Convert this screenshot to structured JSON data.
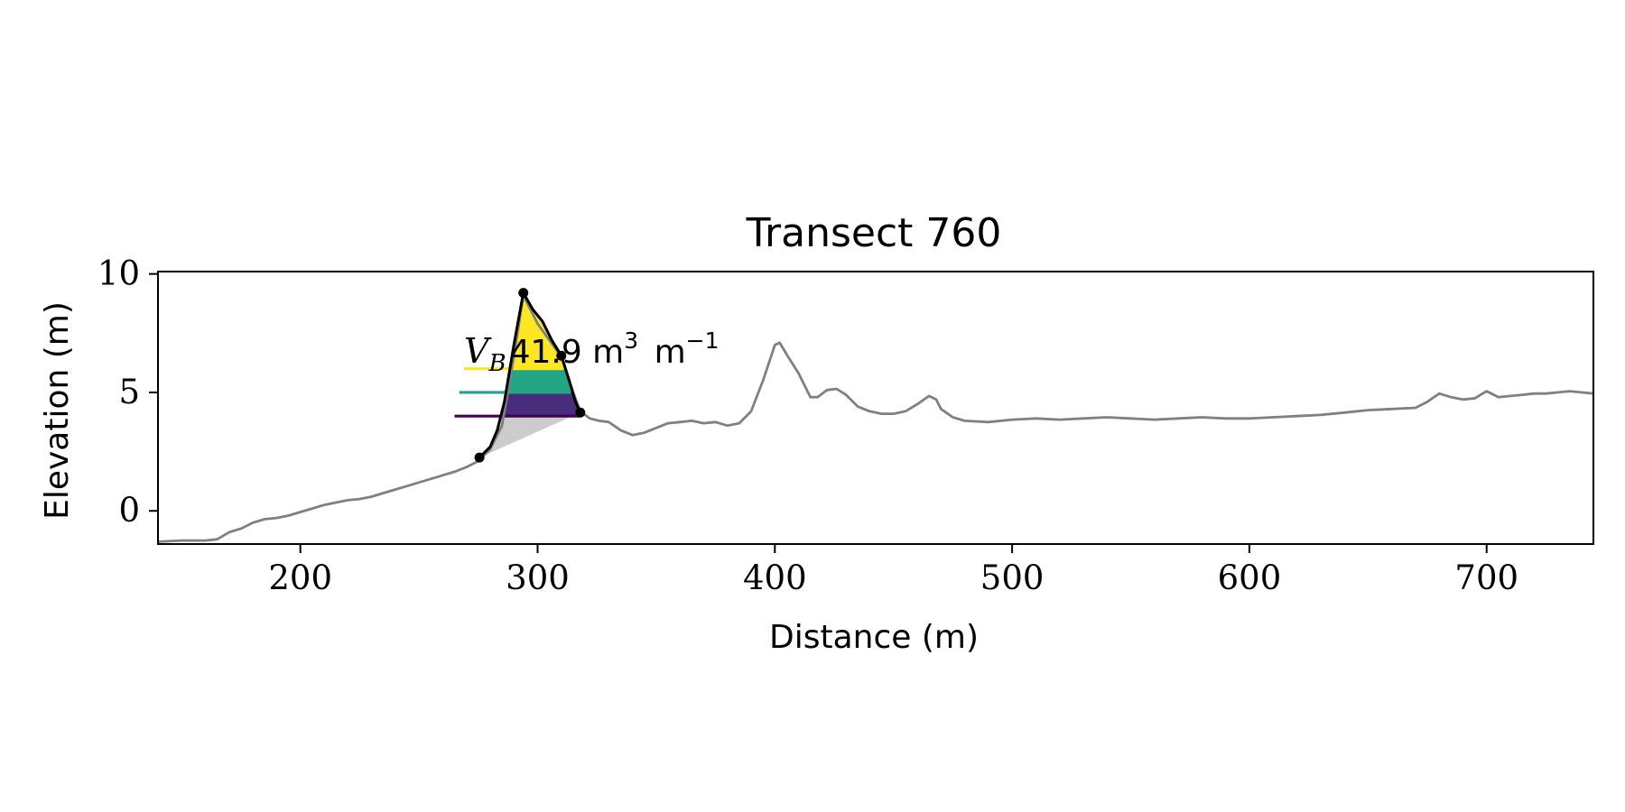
{
  "chart_data": {
    "type": "line",
    "title": "Transect 760",
    "xlabel": "Distance (m)",
    "ylabel": "Elevation (m)",
    "xlim": [
      140,
      745
    ],
    "ylim": [
      -1.4,
      10.1
    ],
    "xticks": [
      200,
      300,
      400,
      500,
      600,
      700
    ],
    "yticks": [
      0,
      5,
      10
    ],
    "grid": false,
    "legend": "none",
    "profile_color": "#808080",
    "dune_outline_color": "#000000",
    "fill_colors": {
      "yellow": "#fde725",
      "teal": "#21a685",
      "purple": "#472d7b",
      "dark_purple": "#440154",
      "gray": "#cccccc"
    },
    "profile": {
      "x": [
        140,
        150,
        160,
        165,
        170,
        175,
        180,
        185,
        190,
        195,
        200,
        205,
        210,
        215,
        220,
        225,
        230,
        235,
        240,
        245,
        250,
        255,
        260,
        265,
        270,
        275,
        280,
        285,
        290,
        294,
        300,
        305,
        310,
        315,
        318,
        322,
        326,
        330,
        335,
        340,
        345,
        350,
        355,
        360,
        365,
        370,
        375,
        380,
        385,
        390,
        395,
        400,
        402,
        405,
        410,
        415,
        418,
        422,
        426,
        430,
        435,
        440,
        445,
        450,
        455,
        460,
        465,
        468,
        470,
        475,
        480,
        490,
        500,
        510,
        520,
        530,
        540,
        550,
        560,
        570,
        580,
        590,
        600,
        610,
        620,
        630,
        640,
        650,
        660,
        670,
        675,
        680,
        685,
        690,
        695,
        700,
        705,
        710,
        715,
        720,
        725,
        730,
        735,
        740,
        745
      ],
      "y": [
        -1.3,
        -1.25,
        -1.25,
        -1.2,
        -0.9,
        -0.75,
        -0.5,
        -0.35,
        -0.3,
        -0.2,
        -0.05,
        0.1,
        0.25,
        0.35,
        0.45,
        0.5,
        0.6,
        0.75,
        0.9,
        1.05,
        1.2,
        1.35,
        1.5,
        1.65,
        1.85,
        2.1,
        2.6,
        3.6,
        6.5,
        9.1,
        7.9,
        7.2,
        6.5,
        5.0,
        4.2,
        3.9,
        3.8,
        3.75,
        3.4,
        3.2,
        3.3,
        3.5,
        3.7,
        3.75,
        3.8,
        3.7,
        3.75,
        3.6,
        3.7,
        4.2,
        5.5,
        7.0,
        7.1,
        6.6,
        5.8,
        4.8,
        4.8,
        5.1,
        5.15,
        4.9,
        4.4,
        4.2,
        4.1,
        4.1,
        4.2,
        4.5,
        4.85,
        4.7,
        4.3,
        3.95,
        3.8,
        3.75,
        3.85,
        3.9,
        3.85,
        3.9,
        3.95,
        3.9,
        3.85,
        3.9,
        3.95,
        3.9,
        3.9,
        3.95,
        4.0,
        4.05,
        4.15,
        4.25,
        4.3,
        4.35,
        4.6,
        4.95,
        4.8,
        4.7,
        4.75,
        5.05,
        4.8,
        4.85,
        4.9,
        4.95,
        4.95,
        5.0,
        5.05,
        5.0,
        4.95
      ]
    },
    "dune": {
      "outline": {
        "x": [
          275.5,
          280,
          283,
          286,
          290,
          294,
          298,
          302,
          306,
          310,
          313,
          316,
          318
        ],
        "y": [
          2.25,
          2.7,
          3.4,
          4.6,
          7.0,
          9.2,
          8.5,
          8.0,
          7.2,
          6.55,
          5.6,
          4.6,
          4.15
        ]
      },
      "points": [
        {
          "x": 275.5,
          "y": 2.25
        },
        {
          "x": 294,
          "y": 9.2
        },
        {
          "x": 310,
          "y": 6.55
        },
        {
          "x": 318,
          "y": 4.15
        }
      ],
      "bands": [
        {
          "color": "yellow",
          "from": 6.0,
          "to": 9.2
        },
        {
          "color": "teal",
          "from": 5.0,
          "to": 6.0
        },
        {
          "color": "purple",
          "from": 4.0,
          "to": 5.0
        }
      ],
      "level_lines": [
        {
          "color": "#fde725",
          "y": 6.0,
          "x_start": 269
        },
        {
          "color": "#21a685",
          "y": 5.0,
          "x_start": 267
        },
        {
          "color": "#440154",
          "y": 4.0,
          "x_start": 265
        }
      ]
    },
    "annotation": {
      "var": "V",
      "sub": "B",
      "value_text": "41.9 m",
      "unit_sup1": "3",
      "unit_mid": " m",
      "unit_sup2": "−1"
    }
  }
}
